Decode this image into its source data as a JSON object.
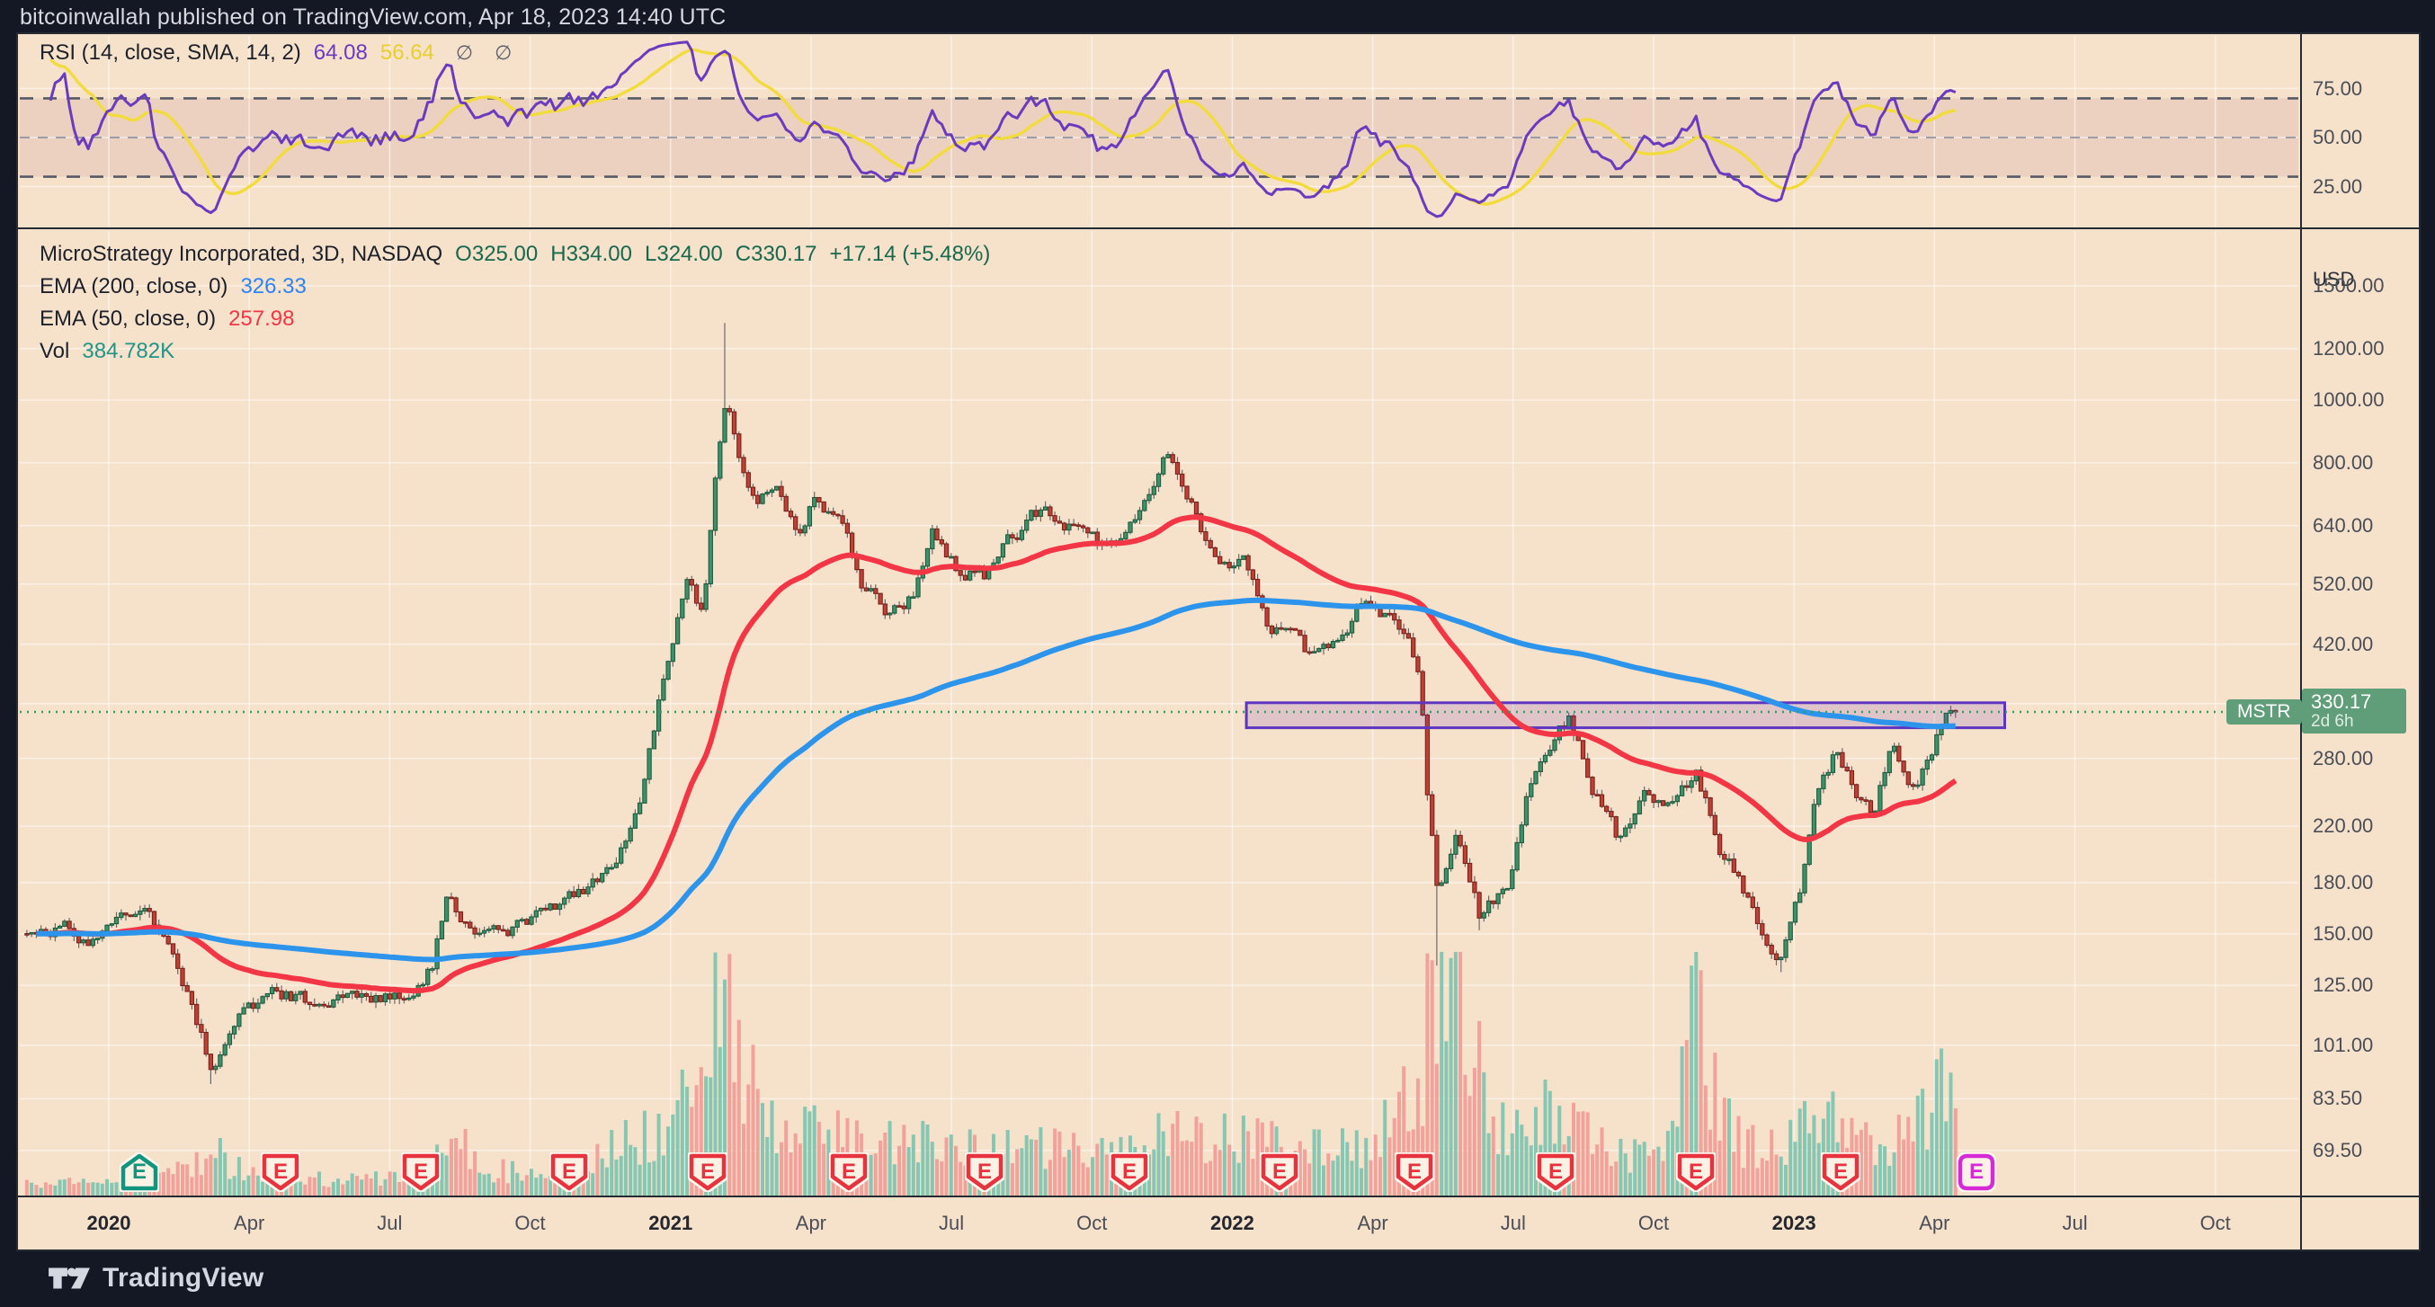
{
  "header": {
    "text": "bitcoinwallah published on TradingView.com, Apr 18, 2023 14:40 UTC"
  },
  "rsi": {
    "label": "RSI (14, close, SMA, 14, 2)",
    "value_rsi": "64.08",
    "value_signal": "56.64",
    "icons": [
      "∅",
      "∅"
    ],
    "axis_ticks": [
      {
        "label": "75.00",
        "v": 75
      },
      {
        "label": "50.00",
        "v": 50
      },
      {
        "label": "25.00",
        "v": 25
      }
    ],
    "upper_band": 70,
    "middle_band": 50,
    "lower_band": 30
  },
  "main": {
    "legend": {
      "title": "MicroStrategy Incorporated, 3D, NASDAQ",
      "ohlc": [
        "O325.00",
        "H334.00",
        "L324.00",
        "C330.17",
        "+17.14 (+5.48%)"
      ],
      "ema200_label": "EMA (200, close, 0)",
      "ema200_value": "326.33",
      "ema50_label": "EMA (50, close, 0)",
      "ema50_value": "257.98",
      "vol_label": "Vol",
      "vol_value": "384.782K"
    },
    "price_label": {
      "symbol": "MSTR",
      "price": "330.17",
      "countdown": "2d 6h"
    }
  },
  "axis": {
    "currency": "USD",
    "price_ticks": [
      {
        "label": "1500.00",
        "v": 1500
      },
      {
        "label": "1200.00",
        "v": 1200
      },
      {
        "label": "1000.00",
        "v": 1000
      },
      {
        "label": "800.00",
        "v": 800
      },
      {
        "label": "640.00",
        "v": 640
      },
      {
        "label": "520.00",
        "v": 520
      },
      {
        "label": "420.00",
        "v": 420
      },
      {
        "label": "340.00",
        "v": 340
      },
      {
        "label": "280.00",
        "v": 280
      },
      {
        "label": "220.00",
        "v": 220
      },
      {
        "label": "180.00",
        "v": 180
      },
      {
        "label": "150.00",
        "v": 150
      },
      {
        "label": "125.00",
        "v": 125
      },
      {
        "label": "101.00",
        "v": 101
      },
      {
        "label": "83.50",
        "v": 83.5
      },
      {
        "label": "69.50",
        "v": 69.5
      }
    ],
    "time_labels": [
      {
        "text": "2020",
        "m": 0,
        "year": true
      },
      {
        "text": "Apr",
        "m": 3
      },
      {
        "text": "Jul",
        "m": 6
      },
      {
        "text": "Oct",
        "m": 9
      },
      {
        "text": "2021",
        "m": 12,
        "year": true
      },
      {
        "text": "Apr",
        "m": 15
      },
      {
        "text": "Jul",
        "m": 18
      },
      {
        "text": "Oct",
        "m": 21
      },
      {
        "text": "2022",
        "m": 24,
        "year": true
      },
      {
        "text": "Apr",
        "m": 27
      },
      {
        "text": "Jul",
        "m": 30
      },
      {
        "text": "Oct",
        "m": 33
      },
      {
        "text": "2023",
        "m": 36,
        "year": true
      },
      {
        "text": "Apr",
        "m": 39
      },
      {
        "text": "Jul",
        "m": 42
      },
      {
        "text": "Oct",
        "m": 45
      }
    ]
  },
  "footer": {
    "brand": "TradingView"
  },
  "chart_data": {
    "type": "candlestick",
    "symbol": "MSTR",
    "exchange": "NASDAQ",
    "interval": "3D",
    "price_scale": "logarithmic",
    "last_bar": {
      "open": 325.0,
      "high": 334.0,
      "low": 324.0,
      "close": 330.17,
      "change": 17.14,
      "change_pct": 5.48
    },
    "indicators": {
      "ema200": 326.33,
      "ema50": 257.98,
      "rsi14": 64.08,
      "rsi_sma14": 56.64,
      "volume": "384.782K"
    },
    "x_unit": "months_since_jan_2020",
    "x_range": [
      -1.75,
      39.45
    ],
    "bar_count": 410,
    "close_anchors": [
      [
        -1.75,
        150
      ],
      [
        -1.0,
        153
      ],
      [
        -0.4,
        148
      ],
      [
        0.0,
        152
      ],
      [
        0.8,
        163
      ],
      [
        1.4,
        140
      ],
      [
        2.2,
        92
      ],
      [
        2.7,
        112
      ],
      [
        3.5,
        121
      ],
      [
        4.5,
        117
      ],
      [
        5.5,
        122
      ],
      [
        6.3,
        118
      ],
      [
        6.9,
        134
      ],
      [
        7.2,
        170
      ],
      [
        7.7,
        157
      ],
      [
        8.5,
        147
      ],
      [
        9.3,
        166
      ],
      [
        10.0,
        172
      ],
      [
        10.8,
        186
      ],
      [
        11.4,
        250
      ],
      [
        11.9,
        380
      ],
      [
        12.4,
        530
      ],
      [
        12.7,
        465
      ],
      [
        13.2,
        1050
      ],
      [
        13.5,
        780
      ],
      [
        13.8,
        698
      ],
      [
        14.2,
        755
      ],
      [
        14.7,
        612
      ],
      [
        15.1,
        705
      ],
      [
        15.6,
        648
      ],
      [
        16.1,
        515
      ],
      [
        16.6,
        472
      ],
      [
        17.2,
        495
      ],
      [
        17.6,
        640
      ],
      [
        18.1,
        558
      ],
      [
        18.7,
        525
      ],
      [
        19.3,
        618
      ],
      [
        20.0,
        685
      ],
      [
        20.6,
        628
      ],
      [
        21.3,
        585
      ],
      [
        22.0,
        650
      ],
      [
        22.4,
        760
      ],
      [
        22.6,
        850
      ],
      [
        23.0,
        720
      ],
      [
        23.5,
        600
      ],
      [
        23.9,
        560
      ],
      [
        24.3,
        555
      ],
      [
        24.8,
        420
      ],
      [
        25.2,
        445
      ],
      [
        25.7,
        398
      ],
      [
        26.3,
        430
      ],
      [
        26.9,
        498
      ],
      [
        27.4,
        460
      ],
      [
        27.8,
        420
      ],
      [
        28.0,
        380
      ],
      [
        28.15,
        250
      ],
      [
        28.4,
        168
      ],
      [
        28.8,
        215
      ],
      [
        29.3,
        158
      ],
      [
        29.9,
        182
      ],
      [
        30.4,
        262
      ],
      [
        30.8,
        295
      ],
      [
        31.2,
        322
      ],
      [
        31.7,
        250
      ],
      [
        32.2,
        212
      ],
      [
        32.8,
        246
      ],
      [
        33.4,
        232
      ],
      [
        33.9,
        262
      ],
      [
        34.4,
        205
      ],
      [
        34.9,
        176
      ],
      [
        35.4,
        142
      ],
      [
        35.7,
        134
      ],
      [
        36.1,
        170
      ],
      [
        36.5,
        248
      ],
      [
        36.9,
        288
      ],
      [
        37.3,
        252
      ],
      [
        37.7,
        232
      ],
      [
        38.1,
        288
      ],
      [
        38.5,
        256
      ],
      [
        38.8,
        272
      ],
      [
        39.1,
        308
      ],
      [
        39.3,
        325
      ],
      [
        39.45,
        330.17
      ]
    ],
    "wick_events": [
      [
        2.2,
        "l",
        88
      ],
      [
        13.2,
        "h",
        1315
      ],
      [
        28.4,
        "l",
        134
      ],
      [
        29.3,
        "l",
        152
      ],
      [
        35.7,
        "l",
        131
      ]
    ],
    "volume_anchors": [
      [
        -1.75,
        0.05
      ],
      [
        1.0,
        0.07
      ],
      [
        2.2,
        0.18
      ],
      [
        3.0,
        0.1
      ],
      [
        5.0,
        0.06
      ],
      [
        6.9,
        0.12
      ],
      [
        7.2,
        0.3
      ],
      [
        8.0,
        0.1
      ],
      [
        10.0,
        0.12
      ],
      [
        11.0,
        0.22
      ],
      [
        12.0,
        0.32
      ],
      [
        13.2,
        0.85
      ],
      [
        13.6,
        0.55
      ],
      [
        14.0,
        0.35
      ],
      [
        15.0,
        0.28
      ],
      [
        16.0,
        0.22
      ],
      [
        17.0,
        0.2
      ],
      [
        18.0,
        0.22
      ],
      [
        19.0,
        0.18
      ],
      [
        20.0,
        0.2
      ],
      [
        21.0,
        0.16
      ],
      [
        22.0,
        0.2
      ],
      [
        22.6,
        0.28
      ],
      [
        23.0,
        0.22
      ],
      [
        24.0,
        0.25
      ],
      [
        25.0,
        0.22
      ],
      [
        26.0,
        0.18
      ],
      [
        27.0,
        0.2
      ],
      [
        28.0,
        0.45
      ],
      [
        28.3,
        1.0
      ],
      [
        28.9,
        0.92
      ],
      [
        29.5,
        0.3
      ],
      [
        30.0,
        0.25
      ],
      [
        30.8,
        0.35
      ],
      [
        31.2,
        0.3
      ],
      [
        32.0,
        0.18
      ],
      [
        33.0,
        0.15
      ],
      [
        34.0,
        0.78
      ],
      [
        34.3,
        0.4
      ],
      [
        35.0,
        0.2
      ],
      [
        36.0,
        0.25
      ],
      [
        37.0,
        0.3
      ],
      [
        38.0,
        0.22
      ],
      [
        38.8,
        0.3
      ],
      [
        39.2,
        0.45
      ],
      [
        39.45,
        0.35
      ]
    ],
    "earnings_badges": [
      {
        "m": 0.65,
        "type": "up"
      },
      {
        "m": 3.67,
        "type": "down"
      },
      {
        "m": 6.67,
        "type": "down"
      },
      {
        "m": 9.83,
        "type": "down"
      },
      {
        "m": 12.8,
        "type": "down"
      },
      {
        "m": 15.8,
        "type": "down"
      },
      {
        "m": 18.7,
        "type": "down"
      },
      {
        "m": 21.8,
        "type": "down"
      },
      {
        "m": 25.0,
        "type": "down"
      },
      {
        "m": 27.9,
        "type": "down"
      },
      {
        "m": 30.9,
        "type": "down"
      },
      {
        "m": 33.9,
        "type": "down"
      },
      {
        "m": 37.0,
        "type": "down"
      },
      {
        "m": 39.9,
        "type": "upcoming"
      }
    ],
    "highlight_box": {
      "m_start": 24.3,
      "m_end": 40.5,
      "price_top": 341,
      "price_bottom": 312
    },
    "price_line": 330.17
  },
  "colors": {
    "background": "#f6e1cb",
    "frame": "#141824",
    "grid": "rgba(255,255,255,0.55)",
    "candle_up": "#3d926a",
    "candle_up_border": "#1e5b3e",
    "candle_down": "#bf4136",
    "candle_down_border": "#7a211b",
    "wick": "#6a6a6a",
    "vol_up": "#85c7b2",
    "vol_down": "#f2a29b",
    "ema_fast": "#f23645",
    "ema_slow": "#2c95eb",
    "rsi_line": "#6a3bbf",
    "rsi_signal": "#f2dc3d",
    "rsi_band": "rgba(150,68,102,0.10)",
    "rsi_dash": "#565a64",
    "rsi_mid_dash": "#9b9ea8",
    "box_fill": "rgba(103,58,183,0.16)",
    "box_stroke": "#5d35c0",
    "price_line": "#2f9e63",
    "badge": "#5f9e78",
    "text_dark": "#1d2129",
    "text_green": "#17694d",
    "text_blue": "#2c83f6",
    "text_red": "#f23645",
    "text_teal": "#219488",
    "text_purple": "#6a3bbf",
    "text_yellow": "#e8cf2e",
    "e_up": "#11967d",
    "e_down": "#e8323e",
    "e_upcoming": "#d62ad6"
  }
}
